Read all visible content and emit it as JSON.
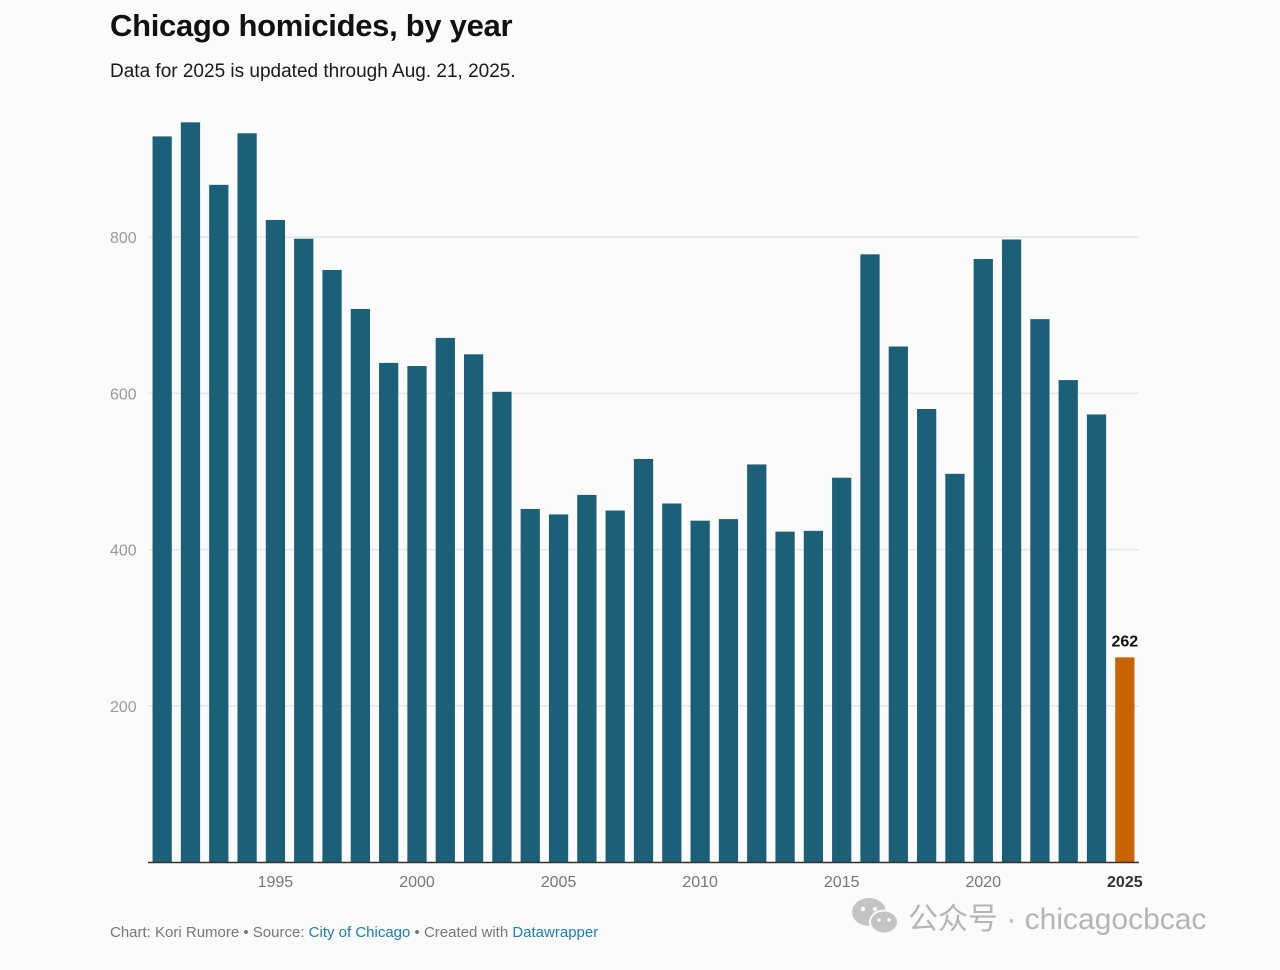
{
  "title": "Chicago homicides, by year",
  "subtitle": "Data for 2025 is updated through Aug. 21, 2025.",
  "colors": {
    "bar": "#1b5f78",
    "highlight": "#c96200",
    "grid": "#e6e6e6",
    "axis": "#333333"
  },
  "chart_data": {
    "type": "bar",
    "title": "Chicago homicides, by year",
    "subtitle": "Data for 2025 is updated through Aug. 21, 2025.",
    "xlabel": "",
    "ylabel": "",
    "ylim": [
      0,
      950
    ],
    "y_ticks": [
      200,
      400,
      600,
      800
    ],
    "x_tick_labels": [
      "1995",
      "2000",
      "2005",
      "2010",
      "2015",
      "2020",
      "2025"
    ],
    "categories": [
      1991,
      1992,
      1993,
      1994,
      1995,
      1996,
      1997,
      1998,
      1999,
      2000,
      2001,
      2002,
      2003,
      2004,
      2005,
      2006,
      2007,
      2008,
      2009,
      2010,
      2011,
      2012,
      2013,
      2014,
      2015,
      2016,
      2017,
      2018,
      2019,
      2020,
      2021,
      2022,
      2023,
      2024,
      2025
    ],
    "values": [
      929,
      947,
      867,
      933,
      822,
      798,
      758,
      708,
      639,
      635,
      671,
      650,
      602,
      452,
      445,
      470,
      450,
      516,
      459,
      437,
      439,
      509,
      423,
      424,
      492,
      778,
      660,
      580,
      497,
      772,
      797,
      695,
      617,
      573,
      262
    ],
    "highlight": {
      "category": 2025,
      "label": "262"
    },
    "grid": true
  },
  "footer": {
    "prefix": "Chart: Kori Rumore • Source: ",
    "source_link": "City of Chicago",
    "middle": " • Created with ",
    "tool_link": "Datawrapper"
  },
  "watermark": {
    "icon": "wechat-icon",
    "text": "公众号 · chicagocbcac"
  }
}
